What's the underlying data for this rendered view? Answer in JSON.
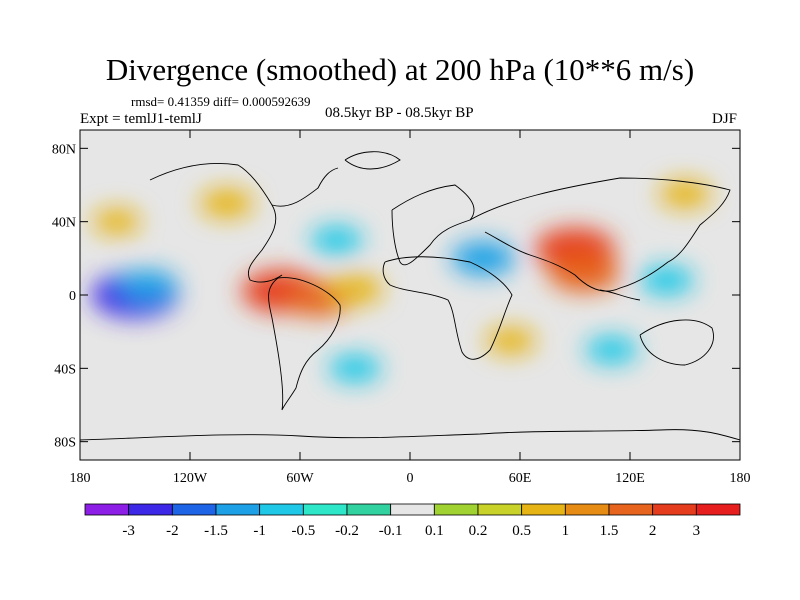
{
  "chart_data": {
    "type": "heatmap",
    "title": "Divergence (smoothed) at 200 hPa (10**6 m/s)",
    "stats": "rmsd= 0.41359 diff= 0.000592639",
    "experiment": "Expt = temlJ1-temlJ",
    "period": "08.5kyr BP - 08.5kyr BP",
    "season": "DJF",
    "x_axis": {
      "range": [
        -180,
        180
      ],
      "tick_values": [
        -180,
        -120,
        -60,
        0,
        60,
        120,
        180
      ],
      "tick_labels": [
        "180",
        "120W",
        "60W",
        "0",
        "60E",
        "120E",
        "180"
      ]
    },
    "y_axis": {
      "range": [
        -90,
        90
      ],
      "tick_values": [
        80,
        40,
        0,
        -40,
        -80
      ],
      "tick_labels": [
        "80N",
        "40N",
        "0",
        "40S",
        "80S"
      ]
    },
    "colorbar": {
      "levels": [
        "-3",
        "-2",
        "-1.5",
        "-1",
        "-0.5",
        "-0.2",
        "-0.1",
        "0.1",
        "0.2",
        "0.5",
        "1",
        "1.5",
        "2",
        "3"
      ],
      "colors": [
        "#8c1ee6",
        "#3c28e6",
        "#1e64e6",
        "#1ea0e6",
        "#1ec8e6",
        "#2ee6c8",
        "#32d2a0",
        "#e6e6e6",
        "#a0d232",
        "#c8d228",
        "#e6b414",
        "#e68c14",
        "#e6641e",
        "#e63c1e",
        "#e61e1e"
      ]
    },
    "features": [
      {
        "lon": -150,
        "lat": 0,
        "value": -2.5
      },
      {
        "lon": -143,
        "lat": 5,
        "value": -1.2
      },
      {
        "lon": -70,
        "lat": 2,
        "value": 2.2
      },
      {
        "lon": -50,
        "lat": -2,
        "value": 1.6
      },
      {
        "lon": -30,
        "lat": 3,
        "value": 1.0
      },
      {
        "lon": 90,
        "lat": 25,
        "value": 2.2
      },
      {
        "lon": 95,
        "lat": 12,
        "value": 1.8
      },
      {
        "lon": 140,
        "lat": 8,
        "value": -0.9
      },
      {
        "lon": 150,
        "lat": 55,
        "value": 0.8
      },
      {
        "lon": 40,
        "lat": 20,
        "value": -1.4
      },
      {
        "lon": 55,
        "lat": -25,
        "value": 0.7
      },
      {
        "lon": -40,
        "lat": 30,
        "value": -0.8
      },
      {
        "lon": -100,
        "lat": 50,
        "value": 0.9
      },
      {
        "lon": -30,
        "lat": -40,
        "value": -0.8
      },
      {
        "lon": 110,
        "lat": -30,
        "value": -0.8
      },
      {
        "lon": -160,
        "lat": 40,
        "value": 0.6
      }
    ]
  }
}
